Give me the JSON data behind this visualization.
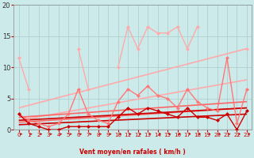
{
  "xlabel": "Vent moyen/en rafales ( km/h )",
  "background_color": "#cceaea",
  "grid_color": "#b0d8d8",
  "xlim": [
    -0.5,
    23.5
  ],
  "ylim": [
    0,
    20
  ],
  "yticks": [
    0,
    5,
    10,
    15,
    20
  ],
  "xticks": [
    0,
    1,
    2,
    3,
    4,
    5,
    6,
    7,
    8,
    9,
    10,
    11,
    12,
    13,
    14,
    15,
    16,
    17,
    18,
    19,
    20,
    21,
    22,
    23
  ],
  "series": [
    {
      "x": [
        0,
        1,
        6,
        7,
        10,
        11,
        12,
        13,
        14,
        15,
        16,
        17,
        18,
        23
      ],
      "y": [
        11.5,
        6.5,
        13.0,
        6.5,
        10.0,
        16.5,
        13.0,
        16.5,
        15.5,
        15.5,
        16.5,
        13.0,
        16.5,
        13.0
      ],
      "segments": [
        {
          "x": [
            0,
            1
          ],
          "y": [
            11.5,
            6.5
          ]
        },
        {
          "x": [
            6,
            7
          ],
          "y": [
            13.0,
            6.5
          ]
        },
        {
          "x": [
            10,
            11,
            12,
            13,
            14,
            15,
            16,
            17,
            18
          ],
          "y": [
            10.0,
            16.5,
            13.0,
            16.5,
            15.5,
            15.5,
            16.5,
            13.0,
            16.5
          ]
        },
        {
          "x": [
            23
          ],
          "y": [
            13.0
          ]
        }
      ],
      "color": "#ffaaaa",
      "lw": 1.0,
      "marker": "D",
      "ms": 2.5,
      "zorder": 3
    },
    {
      "segments": [
        {
          "x": [
            0,
            1,
            2,
            3,
            4,
            5,
            6,
            7,
            8,
            9,
            10,
            11,
            12,
            13,
            14,
            15,
            16,
            17,
            18,
            19,
            20,
            21,
            22,
            23
          ],
          "y": [
            2.5,
            1.5,
            1.0,
            0.5,
            1.0,
            2.5,
            6.5,
            2.5,
            1.5,
            1.0,
            4.5,
            6.5,
            5.5,
            7.0,
            5.5,
            5.0,
            3.5,
            6.5,
            4.5,
            3.5,
            3.0,
            11.5,
            1.0,
            6.5
          ]
        }
      ],
      "color": "#ff7777",
      "lw": 1.0,
      "marker": "D",
      "ms": 2.5,
      "zorder": 3
    },
    {
      "segments": [
        {
          "x": [
            0,
            1,
            2,
            3,
            4,
            5,
            6,
            7,
            8,
            9,
            10,
            11,
            12,
            13,
            14,
            15,
            16,
            17,
            18,
            19,
            20,
            21,
            22,
            23
          ],
          "y": [
            2.5,
            1.0,
            0.5,
            0.0,
            0.0,
            0.5,
            0.5,
            0.5,
            0.5,
            0.5,
            2.0,
            3.5,
            2.5,
            3.5,
            3.0,
            2.5,
            2.0,
            3.5,
            2.0,
            2.0,
            1.5,
            2.5,
            0.0,
            3.0
          ]
        }
      ],
      "color": "#cc0000",
      "lw": 1.0,
      "marker": "D",
      "ms": 2.5,
      "zorder": 3
    },
    {
      "x": [
        0,
        23
      ],
      "y": [
        3.5,
        13.0
      ],
      "color": "#ffaaaa",
      "lw": 1.2,
      "marker": null,
      "zorder": 2
    },
    {
      "x": [
        0,
        23
      ],
      "y": [
        1.5,
        8.0
      ],
      "color": "#ffaaaa",
      "lw": 1.2,
      "marker": null,
      "zorder": 2
    },
    {
      "x": [
        0,
        23
      ],
      "y": [
        2.0,
        4.5
      ],
      "color": "#ff6666",
      "lw": 1.2,
      "marker": null,
      "zorder": 2
    },
    {
      "x": [
        0,
        23
      ],
      "y": [
        1.2,
        3.5
      ],
      "color": "#ff6666",
      "lw": 1.2,
      "marker": null,
      "zorder": 2
    },
    {
      "x": [
        0,
        23
      ],
      "y": [
        1.5,
        3.5
      ],
      "color": "#cc0000",
      "lw": 1.2,
      "marker": null,
      "zorder": 2
    },
    {
      "x": [
        0,
        23
      ],
      "y": [
        0.8,
        2.5
      ],
      "color": "#cc0000",
      "lw": 1.2,
      "marker": null,
      "zorder": 2
    }
  ]
}
